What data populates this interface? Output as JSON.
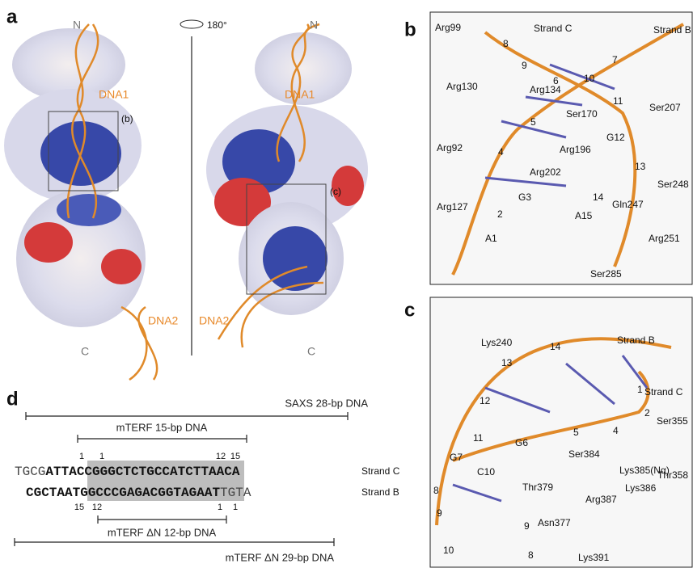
{
  "panels": {
    "a": {
      "label": "a",
      "rotation": "180°",
      "labels": [
        "N",
        "DNA1",
        "(b)",
        "DNA2",
        "C",
        "N",
        "DNA1",
        "(c)",
        "DNA2",
        "C"
      ]
    },
    "b": {
      "label": "b",
      "labels": [
        "Arg99",
        "8",
        "Strand C",
        "Strand B",
        "9",
        "7",
        "Arg130",
        "Arg134",
        "6",
        "10",
        "11",
        "Ser170",
        "Ser207",
        "5",
        "Arg92",
        "Arg196",
        "G12",
        "4",
        "13",
        "Arg202",
        "Ser248",
        "G3",
        "14",
        "Arg127",
        "2",
        "Gln247",
        "A15",
        "A1",
        "Arg251",
        "Ser285"
      ]
    },
    "c": {
      "label": "c",
      "labels": [
        "Lys240",
        "14",
        "Strand B",
        "13",
        "12",
        "1",
        "Strand C",
        "2",
        "Ser355",
        "11",
        "G6",
        "5",
        "4",
        "G7",
        "8",
        "Ser384",
        "Thr358",
        "Lys385(Nα)",
        "9",
        "C10",
        "Thr379",
        "Lys386",
        "Arg387",
        "10",
        "9",
        "Asn377",
        "8",
        "Lys391"
      ]
    },
    "d": {
      "label": "d",
      "brackets": [
        "SAXS 28-bp DNA",
        "mTERF 15-bp DNA",
        "mTERF ΔN 12-bp DNA",
        "mTERF ΔN 29-bp DNA"
      ],
      "strand_c": {
        "prefix": "TGCG",
        "sequence": "ATTACCGGGCTCTGCCATCTTAACA",
        "name": "Strand C"
      },
      "strand_b": {
        "sequence": "CGCTAATGGCCCGAGACGGTAGAAT",
        "suffix": "TGTA",
        "name": "Strand B"
      },
      "top_numbers": [
        "1",
        "1",
        "12",
        "15"
      ],
      "bottom_numbers": [
        "15",
        "12",
        "1",
        "1"
      ]
    }
  }
}
